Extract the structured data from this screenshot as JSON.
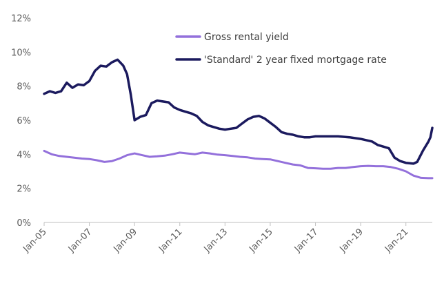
{
  "chart_data": {
    "type": "line",
    "title": "",
    "xlabel": "",
    "ylabel": "",
    "ylim": [
      0,
      12
    ],
    "xlim": [
      "2005-01",
      "2022-03"
    ],
    "grid": false,
    "legend": "top-right",
    "y_ticks": [
      "0%",
      "2%",
      "4%",
      "6%",
      "8%",
      "10%",
      "12%"
    ],
    "x_ticks": [
      "Jan-05",
      "Jan-07",
      "Jan-09",
      "Jan-11",
      "Jan-13",
      "Jan-15",
      "Jan-17",
      "Jan-19",
      "Jan-21"
    ],
    "series": [
      {
        "name": "Gross rental yield",
        "color": "#9370DB",
        "points": [
          [
            "2005-01",
            4.2
          ],
          [
            "2005-05",
            4.0
          ],
          [
            "2005-09",
            3.9
          ],
          [
            "2006-01",
            3.85
          ],
          [
            "2006-05",
            3.8
          ],
          [
            "2006-09",
            3.75
          ],
          [
            "2007-01",
            3.72
          ],
          [
            "2007-05",
            3.65
          ],
          [
            "2007-09",
            3.55
          ],
          [
            "2008-01",
            3.6
          ],
          [
            "2008-05",
            3.75
          ],
          [
            "2008-09",
            3.95
          ],
          [
            "2009-01",
            4.05
          ],
          [
            "2009-05",
            3.95
          ],
          [
            "2009-09",
            3.85
          ],
          [
            "2010-01",
            3.88
          ],
          [
            "2010-05",
            3.92
          ],
          [
            "2010-09",
            4.0
          ],
          [
            "2011-01",
            4.1
          ],
          [
            "2011-05",
            4.05
          ],
          [
            "2011-09",
            4.0
          ],
          [
            "2012-01",
            4.1
          ],
          [
            "2012-05",
            4.05
          ],
          [
            "2012-09",
            3.98
          ],
          [
            "2013-01",
            3.95
          ],
          [
            "2013-05",
            3.9
          ],
          [
            "2013-09",
            3.85
          ],
          [
            "2014-01",
            3.82
          ],
          [
            "2014-05",
            3.75
          ],
          [
            "2014-09",
            3.72
          ],
          [
            "2015-01",
            3.7
          ],
          [
            "2015-05",
            3.6
          ],
          [
            "2015-09",
            3.5
          ],
          [
            "2016-01",
            3.4
          ],
          [
            "2016-05",
            3.35
          ],
          [
            "2016-09",
            3.2
          ],
          [
            "2017-01",
            3.18
          ],
          [
            "2017-05",
            3.15
          ],
          [
            "2017-09",
            3.15
          ],
          [
            "2018-01",
            3.2
          ],
          [
            "2018-05",
            3.2
          ],
          [
            "2018-09",
            3.25
          ],
          [
            "2019-01",
            3.3
          ],
          [
            "2019-05",
            3.32
          ],
          [
            "2019-09",
            3.3
          ],
          [
            "2020-01",
            3.3
          ],
          [
            "2020-05",
            3.25
          ],
          [
            "2020-09",
            3.15
          ],
          [
            "2021-01",
            3.0
          ],
          [
            "2021-05",
            2.75
          ],
          [
            "2021-09",
            2.62
          ],
          [
            "2022-01",
            2.6
          ],
          [
            "2022-03",
            2.6
          ]
        ]
      },
      {
        "name": "'Standard' 2 year fixed mortgage rate",
        "color": "#1B1A5E",
        "points": [
          [
            "2005-01",
            7.55
          ],
          [
            "2005-04",
            7.7
          ],
          [
            "2005-07",
            7.6
          ],
          [
            "2005-10",
            7.7
          ],
          [
            "2006-01",
            8.2
          ],
          [
            "2006-04",
            7.9
          ],
          [
            "2006-07",
            8.1
          ],
          [
            "2006-10",
            8.05
          ],
          [
            "2007-01",
            8.3
          ],
          [
            "2007-04",
            8.9
          ],
          [
            "2007-07",
            9.2
          ],
          [
            "2007-10",
            9.15
          ],
          [
            "2008-01",
            9.4
          ],
          [
            "2008-04",
            9.55
          ],
          [
            "2008-07",
            9.2
          ],
          [
            "2008-09",
            8.7
          ],
          [
            "2008-11",
            7.5
          ],
          [
            "2009-01",
            6.0
          ],
          [
            "2009-04",
            6.2
          ],
          [
            "2009-07",
            6.3
          ],
          [
            "2009-10",
            7.0
          ],
          [
            "2010-01",
            7.15
          ],
          [
            "2010-04",
            7.1
          ],
          [
            "2010-07",
            7.05
          ],
          [
            "2010-10",
            6.75
          ],
          [
            "2011-01",
            6.6
          ],
          [
            "2011-04",
            6.5
          ],
          [
            "2011-07",
            6.4
          ],
          [
            "2011-10",
            6.25
          ],
          [
            "2012-01",
            5.9
          ],
          [
            "2012-04",
            5.7
          ],
          [
            "2012-07",
            5.6
          ],
          [
            "2012-10",
            5.5
          ],
          [
            "2013-01",
            5.45
          ],
          [
            "2013-04",
            5.5
          ],
          [
            "2013-07",
            5.55
          ],
          [
            "2013-10",
            5.8
          ],
          [
            "2014-01",
            6.05
          ],
          [
            "2014-04",
            6.2
          ],
          [
            "2014-07",
            6.25
          ],
          [
            "2014-10",
            6.1
          ],
          [
            "2015-01",
            5.85
          ],
          [
            "2015-04",
            5.6
          ],
          [
            "2015-07",
            5.3
          ],
          [
            "2015-10",
            5.2
          ],
          [
            "2016-01",
            5.15
          ],
          [
            "2016-04",
            5.05
          ],
          [
            "2016-07",
            5.0
          ],
          [
            "2016-10",
            5.0
          ],
          [
            "2017-01",
            5.05
          ],
          [
            "2017-07",
            5.05
          ],
          [
            "2018-01",
            5.05
          ],
          [
            "2018-07",
            5.0
          ],
          [
            "2019-01",
            4.9
          ],
          [
            "2019-07",
            4.75
          ],
          [
            "2019-10",
            4.55
          ],
          [
            "2020-01",
            4.45
          ],
          [
            "2020-04",
            4.35
          ],
          [
            "2020-07",
            3.8
          ],
          [
            "2020-10",
            3.6
          ],
          [
            "2021-01",
            3.5
          ],
          [
            "2021-05",
            3.45
          ],
          [
            "2021-07",
            3.55
          ],
          [
            "2021-10",
            4.2
          ],
          [
            "2022-01",
            4.75
          ],
          [
            "2022-02",
            5.0
          ],
          [
            "2022-03",
            5.55
          ]
        ]
      }
    ]
  }
}
